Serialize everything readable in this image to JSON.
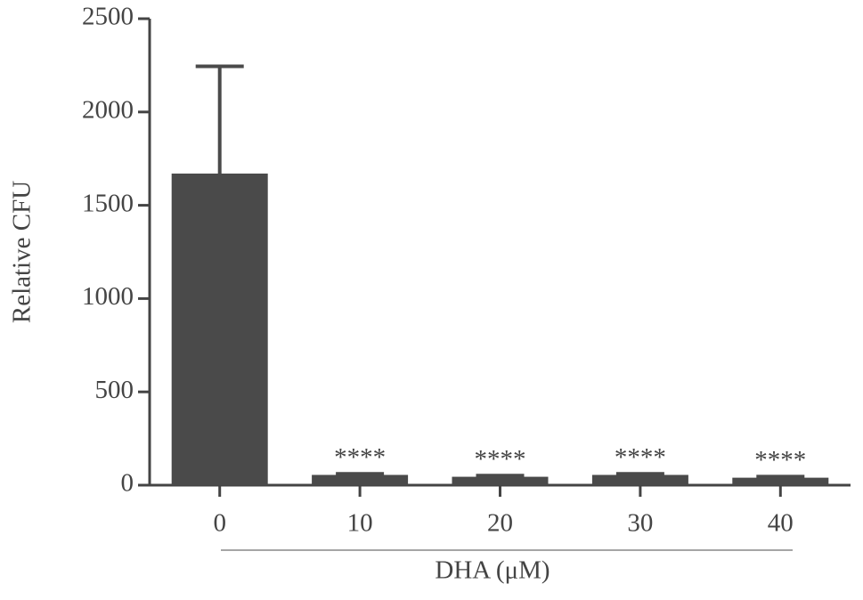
{
  "chart_data": {
    "type": "bar",
    "y_label": "Relative CFU",
    "x_label": "DHA (μM)",
    "categories": [
      "0",
      "10",
      "20",
      "30",
      "40"
    ],
    "values": [
      1670,
      55,
      45,
      55,
      40
    ],
    "errors": [
      575,
      6,
      6,
      6,
      6
    ],
    "annotations": [
      null,
      "****",
      "****",
      "****",
      "****"
    ],
    "color": "#4a4a4a",
    "ylim": [
      0,
      2500
    ],
    "yticks": [
      0,
      500,
      1000,
      1500,
      2000,
      2500
    ],
    "grid": false
  }
}
